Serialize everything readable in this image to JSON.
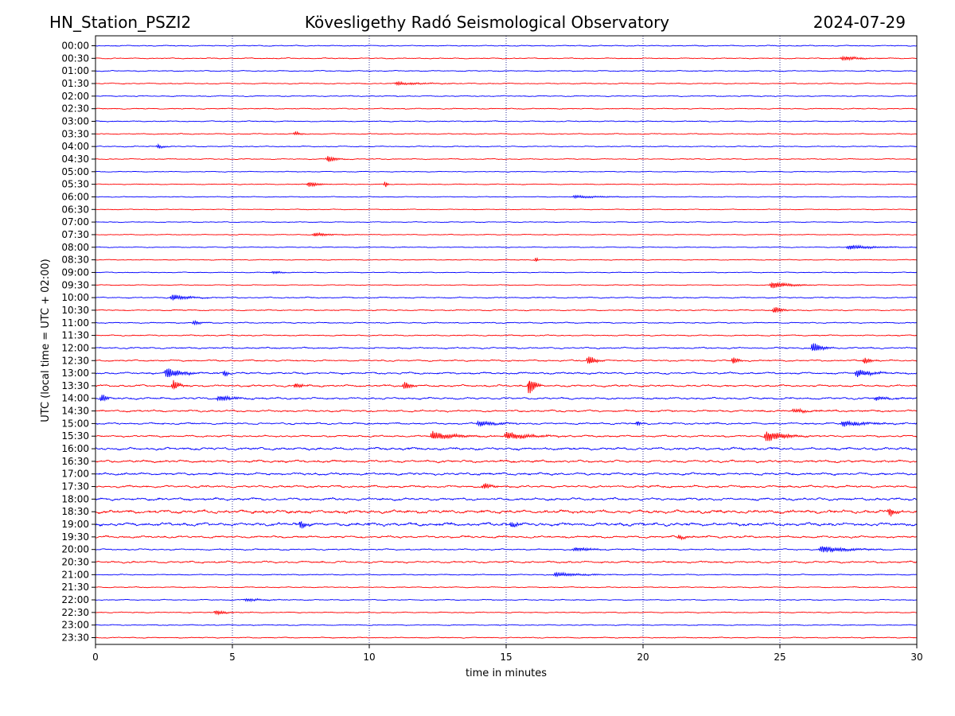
{
  "header": {
    "station": "HN_Station_PSZI2",
    "observatory": "Kövesligethy Radó Seismological Observatory",
    "date": "2024-07-29"
  },
  "chart_data": {
    "type": "line",
    "title": "Kövesligethy Radó Seismological Observatory",
    "xlabel": "time in minutes",
    "ylabel": "UTC (local time = UTC + 02:00)",
    "xlim": [
      0,
      30
    ],
    "x_ticks": [
      "0",
      "5",
      "10",
      "15",
      "20",
      "25",
      "30"
    ],
    "grid": "vertical dotted at 5-minute intervals",
    "colors": {
      "even_rows": "#0000ff",
      "odd_rows": "#ff0000",
      "grid": "#000080"
    },
    "rows": [
      "00:00",
      "00:30",
      "01:00",
      "01:30",
      "02:00",
      "02:30",
      "03:00",
      "03:30",
      "04:00",
      "04:30",
      "05:00",
      "05:30",
      "06:00",
      "06:30",
      "07:00",
      "07:30",
      "08:00",
      "08:30",
      "09:00",
      "09:30",
      "10:00",
      "10:30",
      "11:00",
      "11:30",
      "12:00",
      "12:30",
      "13:00",
      "13:30",
      "14:00",
      "14:30",
      "15:00",
      "15:30",
      "16:00",
      "16:30",
      "17:00",
      "17:30",
      "18:00",
      "18:30",
      "19:00",
      "19:30",
      "20:00",
      "20:30",
      "21:00",
      "21:30",
      "22:00",
      "22:30",
      "23:00",
      "23:30"
    ],
    "events": [
      {
        "row": "00:30",
        "t": 27.3,
        "amp": 3,
        "dur": 1.0
      },
      {
        "row": "01:30",
        "t": 11.0,
        "amp": 2,
        "dur": 1.5
      },
      {
        "row": "03:30",
        "t": 7.3,
        "amp": 3,
        "dur": 0.3
      },
      {
        "row": "04:00",
        "t": 2.3,
        "amp": 3,
        "dur": 0.3
      },
      {
        "row": "04:30",
        "t": 8.5,
        "amp": 5,
        "dur": 0.4
      },
      {
        "row": "05:30",
        "t": 7.8,
        "amp": 4,
        "dur": 0.5
      },
      {
        "row": "05:30",
        "t": 10.6,
        "amp": 5,
        "dur": 0.1
      },
      {
        "row": "06:00",
        "t": 17.5,
        "amp": 2,
        "dur": 1.5
      },
      {
        "row": "07:30",
        "t": 8.0,
        "amp": 3,
        "dur": 0.8
      },
      {
        "row": "08:00",
        "t": 27.5,
        "amp": 3,
        "dur": 1.5
      },
      {
        "row": "08:30",
        "t": 16.1,
        "amp": 4,
        "dur": 0.1
      },
      {
        "row": "09:00",
        "t": 6.5,
        "amp": 2,
        "dur": 0.5
      },
      {
        "row": "09:30",
        "t": 24.7,
        "amp": 5,
        "dur": 1.0
      },
      {
        "row": "10:00",
        "t": 2.8,
        "amp": 4,
        "dur": 1.0
      },
      {
        "row": "10:30",
        "t": 24.8,
        "amp": 5,
        "dur": 0.4
      },
      {
        "row": "11:00",
        "t": 3.6,
        "amp": 3,
        "dur": 0.4
      },
      {
        "row": "12:00",
        "t": 26.2,
        "amp": 8,
        "dur": 0.5
      },
      {
        "row": "12:30",
        "t": 18.0,
        "amp": 7,
        "dur": 0.4
      },
      {
        "row": "12:30",
        "t": 23.3,
        "amp": 5,
        "dur": 0.3
      },
      {
        "row": "12:30",
        "t": 28.1,
        "amp": 5,
        "dur": 0.3
      },
      {
        "row": "13:00",
        "t": 2.6,
        "amp": 8,
        "dur": 0.8
      },
      {
        "row": "13:00",
        "t": 4.7,
        "amp": 6,
        "dur": 0.2
      },
      {
        "row": "13:00",
        "t": 27.8,
        "amp": 5,
        "dur": 1.0
      },
      {
        "row": "13:30",
        "t": 2.85,
        "amp": 8,
        "dur": 0.3
      },
      {
        "row": "13:30",
        "t": 7.3,
        "amp": 4,
        "dur": 0.4
      },
      {
        "row": "13:30",
        "t": 11.3,
        "amp": 7,
        "dur": 0.3
      },
      {
        "row": "13:30",
        "t": 15.85,
        "amp": 14,
        "dur": 0.3
      },
      {
        "row": "14:00",
        "t": 0.25,
        "amp": 7,
        "dur": 0.2
      },
      {
        "row": "14:00",
        "t": 4.5,
        "amp": 4,
        "dur": 1.0
      },
      {
        "row": "14:00",
        "t": 28.5,
        "amp": 3,
        "dur": 0.8
      },
      {
        "row": "14:30",
        "t": 25.5,
        "amp": 3,
        "dur": 1.0
      },
      {
        "row": "15:00",
        "t": 14.0,
        "amp": 4,
        "dur": 1.0
      },
      {
        "row": "15:00",
        "t": 19.8,
        "amp": 4,
        "dur": 0.2
      },
      {
        "row": "15:00",
        "t": 27.3,
        "amp": 4,
        "dur": 1.5
      },
      {
        "row": "15:30",
        "t": 12.3,
        "amp": 6,
        "dur": 1.2
      },
      {
        "row": "15:30",
        "t": 15.0,
        "amp": 5,
        "dur": 1.5
      },
      {
        "row": "15:30",
        "t": 24.5,
        "amp": 8,
        "dur": 1.0
      },
      {
        "row": "17:30",
        "t": 14.2,
        "amp": 5,
        "dur": 0.4
      },
      {
        "row": "18:30",
        "t": 29.0,
        "amp": 7,
        "dur": 0.3
      },
      {
        "row": "19:00",
        "t": 7.5,
        "amp": 6,
        "dur": 0.3
      },
      {
        "row": "19:00",
        "t": 15.2,
        "amp": 5,
        "dur": 0.3
      },
      {
        "row": "19:30",
        "t": 21.3,
        "amp": 3,
        "dur": 0.5
      },
      {
        "row": "20:00",
        "t": 17.5,
        "amp": 3,
        "dur": 1.0
      },
      {
        "row": "20:00",
        "t": 26.5,
        "amp": 5,
        "dur": 1.5
      },
      {
        "row": "21:00",
        "t": 16.8,
        "amp": 3,
        "dur": 1.5
      },
      {
        "row": "22:00",
        "t": 5.5,
        "amp": 2,
        "dur": 1.0
      },
      {
        "row": "22:30",
        "t": 4.4,
        "amp": 3,
        "dur": 0.6
      }
    ],
    "noise_levels": {
      "00:00": 1.0,
      "05:00": 0.8,
      "10:00": 1.2,
      "12:00": 1.6,
      "13:00": 2.0,
      "15:00": 1.8,
      "16:00": 2.6,
      "16:30": 2.5,
      "17:00": 2.4,
      "17:30": 2.2,
      "18:00": 2.6,
      "18:30": 3.4,
      "19:00": 3.2,
      "19:30": 2.2,
      "20:00": 1.4,
      "20:30": 2.0,
      "21:00": 1.0,
      "23:00": 1.0
    }
  }
}
